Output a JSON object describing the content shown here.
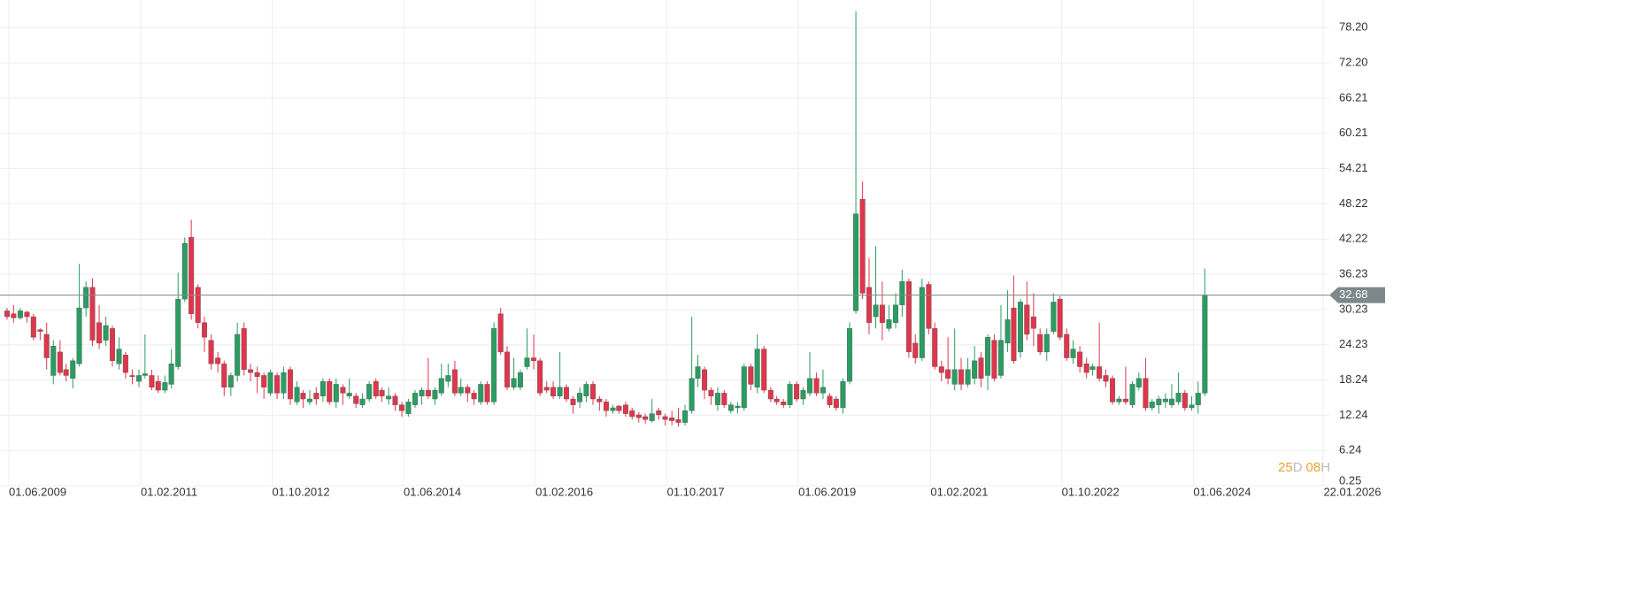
{
  "chart_data": {
    "type": "candlestick",
    "x": [
      "01.06.2009",
      "01.07.2009",
      "01.08.2009",
      "01.09.2009",
      "01.10.2009",
      "01.11.2009",
      "01.12.2009",
      "01.01.2010",
      "01.02.2010",
      "01.03.2010",
      "01.04.2010",
      "01.05.2010",
      "01.06.2010",
      "01.07.2010",
      "01.08.2010",
      "01.09.2010",
      "01.10.2010",
      "01.11.2010",
      "01.12.2010",
      "01.01.2011",
      "01.02.2011",
      "01.03.2011",
      "01.04.2011",
      "01.05.2011",
      "01.06.2011",
      "01.07.2011",
      "01.08.2011",
      "01.09.2011",
      "01.10.2011",
      "01.11.2011",
      "01.12.2011",
      "01.01.2012",
      "01.02.2012",
      "01.03.2012",
      "01.04.2012",
      "01.05.2012",
      "01.06.2012",
      "01.07.2012",
      "01.08.2012",
      "01.09.2012",
      "01.10.2012",
      "01.11.2012",
      "01.12.2012",
      "01.01.2013",
      "01.02.2013",
      "01.03.2013",
      "01.04.2013",
      "01.05.2013",
      "01.06.2013",
      "01.07.2013",
      "01.08.2013",
      "01.09.2013",
      "01.10.2013",
      "01.11.2013",
      "01.12.2013",
      "01.01.2014",
      "01.02.2014",
      "01.03.2014",
      "01.04.2014",
      "01.05.2014",
      "01.06.2014",
      "01.07.2014",
      "01.08.2014",
      "01.09.2014",
      "01.10.2014",
      "01.11.2014",
      "01.12.2014",
      "01.01.2015",
      "01.02.2015",
      "01.03.2015",
      "01.04.2015",
      "01.05.2015",
      "01.06.2015",
      "01.07.2015",
      "01.08.2015",
      "01.09.2015",
      "01.10.2015",
      "01.11.2015",
      "01.12.2015",
      "01.01.2016",
      "01.02.2016",
      "01.03.2016",
      "01.04.2016",
      "01.05.2016",
      "01.06.2016",
      "01.07.2016",
      "01.08.2016",
      "01.09.2016",
      "01.10.2016",
      "01.11.2016",
      "01.12.2016",
      "01.01.2017",
      "01.02.2017",
      "01.03.2017",
      "01.04.2017",
      "01.05.2017",
      "01.06.2017",
      "01.07.2017",
      "01.08.2017",
      "01.09.2017",
      "01.10.2017",
      "01.11.2017",
      "01.12.2017",
      "01.01.2018",
      "01.02.2018",
      "01.03.2018",
      "01.04.2018",
      "01.05.2018",
      "01.06.2018",
      "01.07.2018",
      "01.08.2018",
      "01.09.2018",
      "01.10.2018",
      "01.11.2018",
      "01.12.2018",
      "01.01.2019",
      "01.02.2019",
      "01.03.2019",
      "01.04.2019",
      "01.05.2019",
      "01.06.2019",
      "01.07.2019",
      "01.08.2019",
      "01.09.2019",
      "01.10.2019",
      "01.11.2019",
      "01.12.2019",
      "01.01.2020",
      "01.02.2020",
      "01.03.2020",
      "01.04.2020",
      "01.05.2020",
      "01.06.2020",
      "01.07.2020",
      "01.08.2020",
      "01.09.2020",
      "01.10.2020",
      "01.11.2020",
      "01.12.2020",
      "01.01.2021",
      "01.02.2021",
      "01.03.2021",
      "01.04.2021",
      "01.05.2021",
      "01.06.2021",
      "01.07.2021",
      "01.08.2021",
      "01.09.2021",
      "01.10.2021",
      "01.11.2021",
      "01.12.2021",
      "01.01.2022",
      "01.02.2022",
      "01.03.2022",
      "01.04.2022",
      "01.05.2022",
      "01.06.2022",
      "01.07.2022",
      "01.08.2022",
      "01.09.2022",
      "01.10.2022",
      "01.11.2022",
      "01.12.2022",
      "01.01.2023",
      "01.02.2023",
      "01.03.2023",
      "01.04.2023",
      "01.05.2023",
      "01.06.2023",
      "01.07.2023",
      "01.08.2023",
      "01.09.2023",
      "01.10.2023",
      "01.11.2023",
      "01.12.2023",
      "01.01.2024",
      "01.02.2024",
      "01.03.2024",
      "01.04.2024",
      "01.05.2024",
      "01.06.2024",
      "01.07.2024",
      "01.08.2024"
    ],
    "open": [
      30,
      29.5,
      28.8,
      29.8,
      29,
      26.8,
      26,
      19,
      23,
      20,
      18.5,
      21,
      30.5,
      34,
      28,
      25,
      27,
      21,
      22.5,
      19,
      18,
      19,
      19,
      18,
      16.5,
      17.5,
      20.5,
      32,
      42.5,
      34,
      28,
      25,
      22,
      21,
      17,
      19,
      27,
      20,
      19.5,
      19,
      16,
      19,
      16,
      20,
      14.5,
      16,
      14.5,
      16,
      15.5,
      18,
      14.5,
      17,
      15.5,
      15.5,
      14,
      15,
      18,
      16.5,
      15,
      15.5,
      14,
      12.5,
      14,
      15.5,
      16.5,
      15,
      16,
      18,
      20,
      16,
      17,
      16,
      14.5,
      17.5,
      14.5,
      29.5,
      23,
      17,
      17,
      20.5,
      22,
      21.5,
      17,
      17,
      15.5,
      17,
      15,
      14.5,
      15.5,
      17.5,
      15,
      14.5,
      13,
      13.8,
      14,
      13,
      12.3,
      12,
      11.3,
      13,
      12,
      11.8,
      11.5,
      11,
      13,
      18.5,
      20,
      16.5,
      14,
      16,
      13,
      13.5,
      13.5,
      20.5,
      17,
      23.5,
      16.5,
      15,
      14.5,
      14,
      17.5,
      15,
      16,
      18.5,
      16,
      15.5,
      15,
      13.5,
      18,
      30,
      49,
      34,
      29,
      31,
      27,
      28,
      31,
      35,
      24.5,
      22,
      34.5,
      27,
      20.5,
      20,
      17.5,
      20,
      17.5,
      18.5,
      22,
      19,
      25,
      19,
      24.5,
      30.5,
      23,
      31,
      29,
      26,
      23,
      26.5,
      32,
      26,
      22,
      23,
      21,
      20,
      20.5,
      19,
      18.5,
      14.5,
      15,
      14,
      17,
      18.5,
      13.5,
      14,
      14.5,
      14,
      14.5,
      16,
      13.5,
      14,
      16
    ],
    "high": [
      30.5,
      31,
      30.5,
      30,
      29.5,
      27,
      28,
      25,
      25,
      21,
      22,
      38,
      35,
      35.5,
      31,
      29,
      27.5,
      25.5,
      23,
      20,
      20,
      26,
      20,
      19,
      19,
      23.5,
      36.5,
      42.5,
      45.5,
      34.5,
      29,
      26,
      23,
      21.5,
      19.5,
      28,
      28,
      21,
      20.5,
      19.5,
      20,
      19.5,
      20.5,
      20.5,
      18,
      16.5,
      16.5,
      17,
      18.5,
      18.5,
      18.5,
      17.5,
      18.5,
      16,
      16,
      18,
      18.5,
      17,
      17,
      16,
      14.5,
      15,
      16.5,
      17,
      22,
      17,
      21,
      21,
      21.5,
      18.5,
      17.5,
      16.5,
      18,
      18,
      28,
      30.5,
      24,
      22,
      20,
      27,
      26,
      22,
      18,
      18,
      23,
      17.5,
      15.5,
      17,
      18,
      18,
      15.5,
      15,
      14,
      14,
      14.5,
      13.5,
      12.8,
      12.5,
      15,
      13.5,
      12.5,
      13,
      13.5,
      14,
      29,
      22.5,
      20.5,
      17,
      17,
      16.5,
      14.5,
      14.5,
      21,
      21,
      26,
      24,
      17,
      15.5,
      15,
      18,
      18,
      17,
      23,
      19.5,
      20,
      16,
      15.5,
      18.5,
      28,
      81,
      52,
      39,
      41,
      35,
      31,
      33,
      37,
      35.5,
      26,
      35.5,
      35,
      28,
      21.5,
      25.5,
      27,
      22,
      22,
      24,
      23,
      26,
      26,
      31,
      33.5,
      36,
      32,
      35,
      33,
      27,
      27,
      33,
      32.5,
      27,
      25,
      24,
      22,
      21,
      28,
      20,
      19,
      15.5,
      20.5,
      18,
      19.5,
      22,
      15,
      15.5,
      16,
      17.5,
      19.5,
      16.5,
      15.5,
      18,
      37.2
    ],
    "low": [
      28.5,
      28,
      28.5,
      28,
      25,
      25,
      20,
      17.5,
      19,
      18,
      16.8,
      20.5,
      29,
      24,
      23.5,
      24,
      20.5,
      20,
      18.5,
      17.5,
      17,
      18.5,
      16.5,
      16,
      16,
      16.8,
      20,
      31.5,
      28.5,
      27,
      23,
      20,
      19.5,
      15.5,
      15.5,
      18,
      19,
      18,
      16,
      15,
      15.5,
      15,
      15,
      14,
      14,
      13.5,
      14,
      14,
      14.5,
      14,
      13.5,
      14,
      15,
      13.5,
      13.5,
      14.5,
      15,
      14.5,
      14,
      13,
      12,
      12,
      13.5,
      14,
      15,
      14,
      15.5,
      17,
      15.5,
      15.5,
      14.5,
      14,
      14,
      14,
      14,
      22.5,
      16.5,
      16.5,
      16.5,
      20,
      20,
      15.5,
      16,
      15,
      15,
      14.5,
      12.5,
      13.5,
      14.5,
      14,
      13,
      12,
      12.5,
      12.5,
      12,
      11.5,
      11,
      10.8,
      11,
      11.5,
      10.5,
      10.5,
      10.3,
      10.5,
      12.5,
      17,
      15,
      14,
      13,
      13.5,
      12.5,
      12.5,
      13,
      16.5,
      16,
      16,
      14.5,
      14,
      13.5,
      13.5,
      14.5,
      14,
      15.5,
      15.5,
      15,
      13.5,
      13,
      12.5,
      17.5,
      29.5,
      32,
      26,
      27,
      25,
      26.5,
      27,
      29,
      22,
      21,
      21.5,
      26,
      20,
      18,
      17.5,
      16.5,
      16.5,
      17,
      17.5,
      17,
      16.5,
      18,
      18.5,
      23,
      21,
      22,
      25,
      24,
      22.5,
      21.5,
      26,
      25,
      21.5,
      21,
      19.5,
      18.5,
      19,
      18,
      17,
      14,
      14,
      14,
      13.5,
      16.5,
      13,
      13,
      12.5,
      13.5,
      13.5,
      14,
      13,
      13,
      12.5,
      15.5
    ],
    "close": [
      29,
      28.8,
      30,
      29,
      25.5,
      26.5,
      22,
      24,
      19.5,
      19,
      21.5,
      30.5,
      34,
      25,
      24.5,
      27.5,
      21.5,
      23.5,
      19.5,
      18.8,
      19,
      19.3,
      17,
      16.5,
      17.8,
      21,
      32,
      41.5,
      29.5,
      28,
      25.5,
      21,
      21,
      17,
      19,
      26,
      20,
      19.5,
      18.8,
      17,
      19.5,
      16,
      19.5,
      15,
      17,
      15,
      15,
      15,
      18,
      14.5,
      17.5,
      16,
      16,
      14.2,
      15,
      17.5,
      15.5,
      15.5,
      15.5,
      14,
      13,
      14.5,
      16,
      16.5,
      15.5,
      16.5,
      18.5,
      19,
      16,
      17,
      16,
      15,
      17.5,
      14.5,
      27,
      23,
      17,
      18.5,
      19.5,
      22,
      21.5,
      16,
      16.5,
      15.5,
      17,
      15,
      14,
      16,
      17.5,
      15,
      14.5,
      13,
      13.5,
      13,
      12.5,
      12,
      11.8,
      11.5,
      12.5,
      12.3,
      11.5,
      11.3,
      11,
      13,
      18.5,
      20.5,
      16.5,
      15.5,
      16,
      14,
      14,
      13.8,
      20.5,
      17.5,
      23.5,
      16.5,
      15,
      14.5,
      14,
      17.5,
      15,
      16.5,
      18.5,
      16,
      17,
      14,
      13.5,
      18,
      27,
      46.5,
      33,
      28,
      31,
      28,
      28.5,
      31,
      35,
      23,
      22,
      34,
      27,
      20.5,
      19.5,
      18.5,
      20,
      17.5,
      20,
      21.5,
      18.5,
      25.5,
      18.5,
      25,
      28.5,
      21.5,
      31.5,
      26,
      27,
      23,
      26,
      31.5,
      25.5,
      22,
      23.5,
      20.5,
      19.5,
      20.5,
      18.5,
      18,
      14.5,
      15,
      14.5,
      17.5,
      18.5,
      13.5,
      14.5,
      15,
      15,
      15,
      16,
      13.5,
      14,
      16,
      32.68
    ],
    "up_color": "#2a9d62",
    "down_color": "#e0364b",
    "last_price": 32.68,
    "last_price_color": "#7d888c",
    "xlim": [
      "01.06.2009",
      "22.01.2026"
    ],
    "xticks": [
      "01.06.2009",
      "01.02.2011",
      "01.10.2012",
      "01.06.2014",
      "01.02.2016",
      "01.10.2017",
      "01.06.2019",
      "01.02.2021",
      "01.10.2022",
      "01.06.2024",
      "22.01.2026"
    ],
    "ylim": [
      0.25,
      82.9
    ],
    "yticks": [
      0.25,
      6.24,
      12.24,
      18.24,
      24.23,
      30.23,
      36.23,
      42.22,
      48.22,
      54.21,
      60.21,
      66.21,
      {
        "value": 72.2,
        "label": "72.20"
      },
      {
        "value": 78.2,
        "label": "78.20"
      }
    ],
    "grid": true,
    "countdown": {
      "days": "25",
      "days_unit": "D",
      "hours": "08",
      "hours_unit": "H"
    }
  }
}
